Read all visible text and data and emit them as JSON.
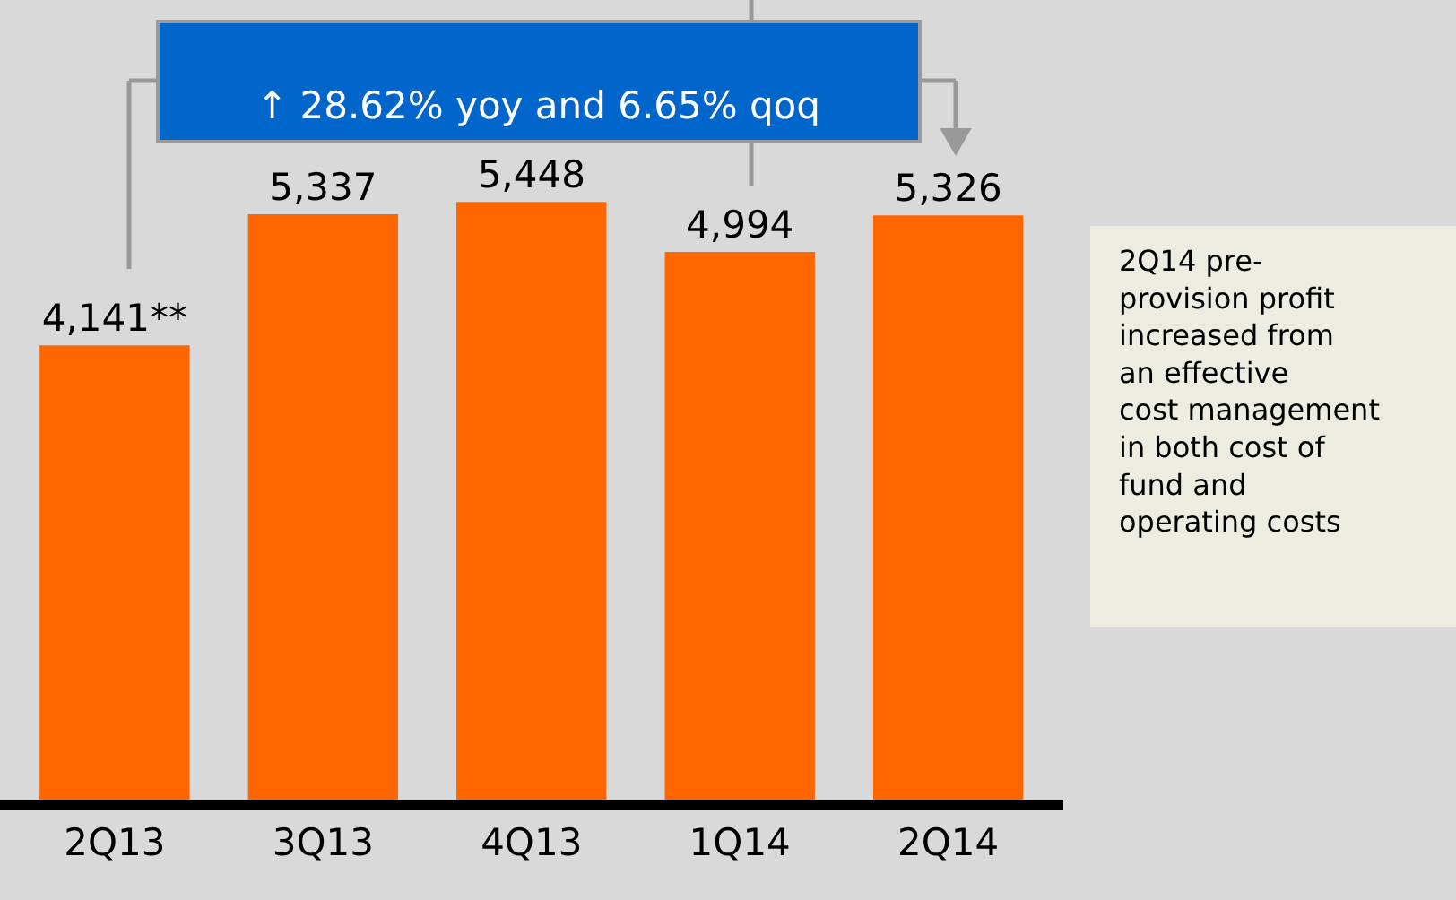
{
  "chart_data": {
    "type": "bar",
    "categories": [
      "2Q13",
      "3Q13",
      "4Q13",
      "1Q14",
      "2Q14"
    ],
    "values": [
      4141,
      5337,
      5448,
      4994,
      5326
    ],
    "value_labels": [
      "4,141**",
      "5,337",
      "5,448",
      "4,994",
      "5,326"
    ],
    "color": "#ff6600",
    "legend": false,
    "grid": false,
    "tick_labels": "x",
    "annotations": [
      "↑ 28.62% yoy and 6.65% qoq",
      "2Q14 pre-provision profit increased from an effective cost management in both cost of fund and operating costs"
    ]
  }
}
